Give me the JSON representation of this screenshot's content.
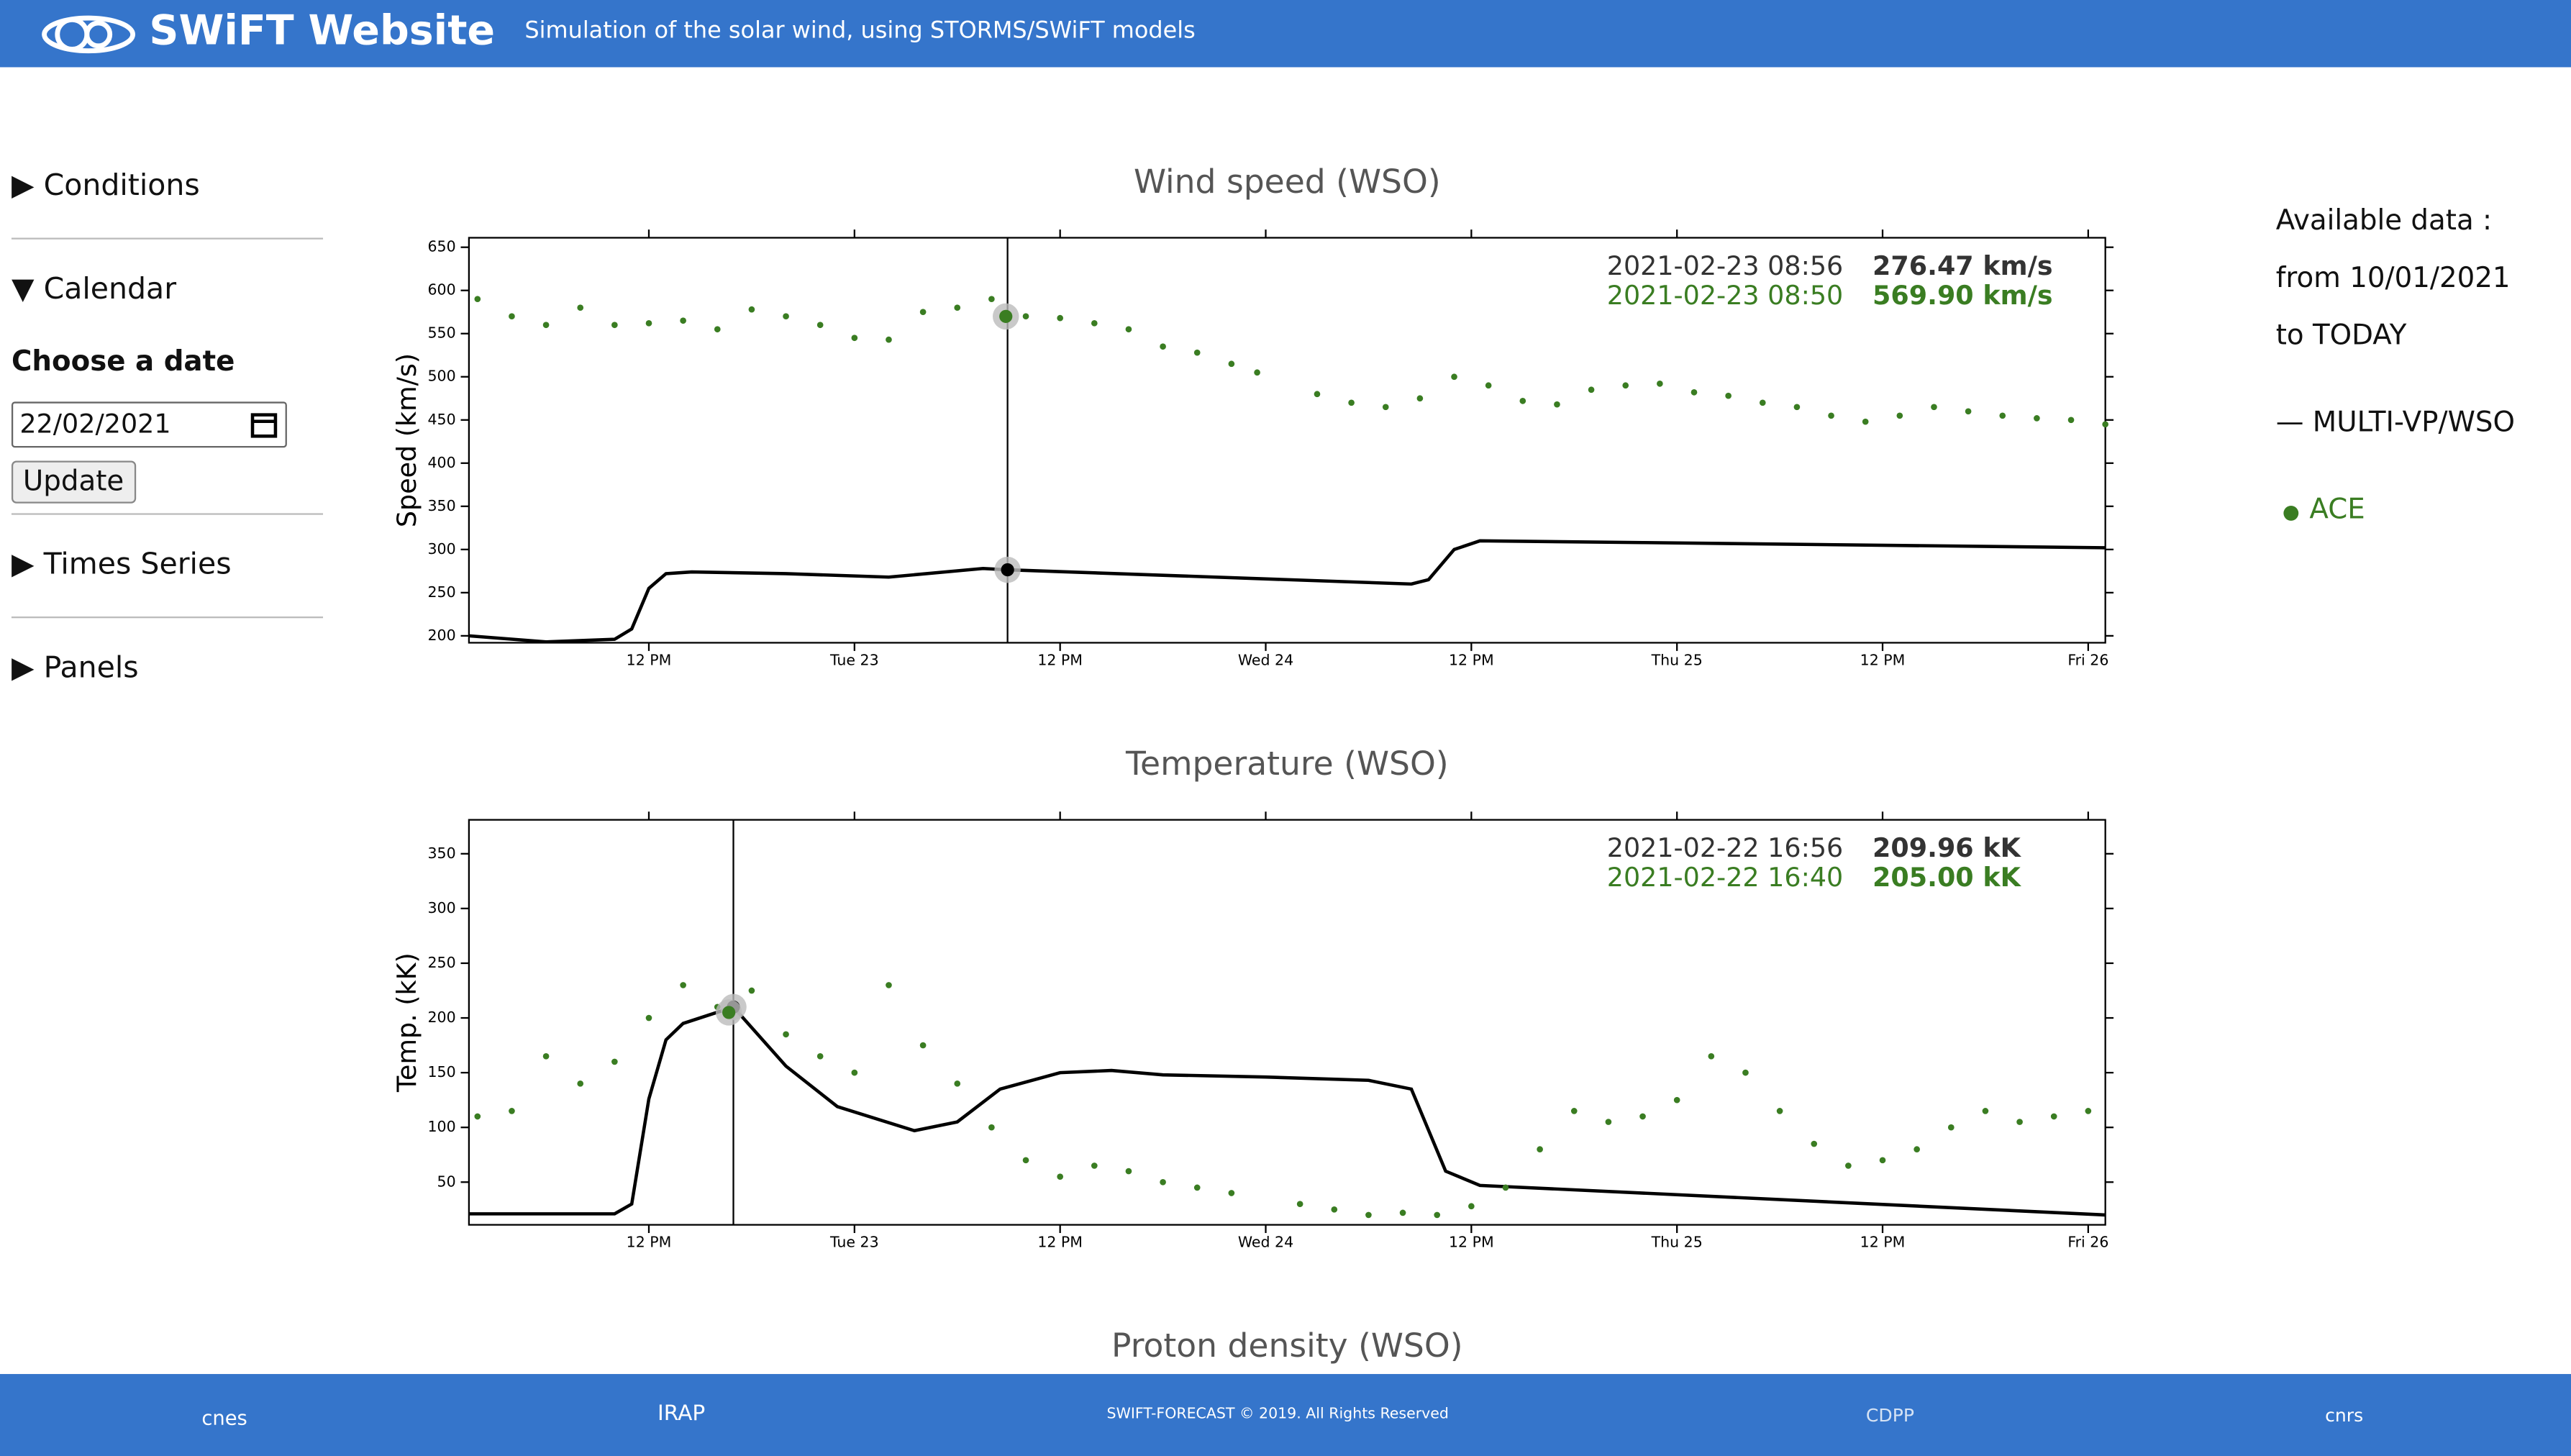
{
  "header": {
    "title": "SWiFT Website",
    "subtitle": "Simulation of the solar wind, using STORMS/SWiFT models"
  },
  "sidebar": {
    "sections": [
      "Conditions",
      "Calendar"
    ],
    "date_heading": "Choose a date",
    "date_value": "22/02/2021",
    "button": "Update",
    "more_sections": [
      "Times Series",
      "Panels"
    ]
  },
  "info": {
    "lines": [
      "Available data :",
      "from 10/01/2021",
      "to TODAY"
    ]
  },
  "next_title": "Proton density (WSO)",
  "footer": {
    "logos": [
      "cnes",
      "IRAP",
      "SWIFT-FORECAST © 2019. All Rights Reserved",
      "CDPP",
      "cnrs"
    ]
  },
  "chart_data": [
    {
      "type": "line",
      "title": "Wind speed (WSO)",
      "y_label": "Speed (km/s)",
      "xlim": [
        "2021-02-22 01:30",
        "2021-02-26 01:00"
      ],
      "xticks": [
        {
          "value": "2021-02-22 12:00",
          "label": "12 PM"
        },
        {
          "value": "2021-02-23 00:00",
          "label": "Tue 23"
        },
        {
          "value": "2021-02-23 12:00",
          "label": "12 PM"
        },
        {
          "value": "2021-02-24 00:00",
          "label": "Wed 24"
        },
        {
          "value": "2021-02-24 12:00",
          "label": "12 PM"
        },
        {
          "value": "2021-02-25 00:00",
          "label": "Thu 25"
        },
        {
          "value": "2021-02-25 12:00",
          "label": "12 PM"
        },
        {
          "value": "2021-02-26 00:00",
          "label": "Fri 26"
        }
      ],
      "ylim": [
        192,
        661
      ],
      "yticks": [
        200,
        250,
        300,
        350,
        400,
        450,
        500,
        550,
        600,
        650
      ],
      "series": [
        {
          "name": "MULTI-VP/WSO",
          "color": "#000000",
          "style": "line",
          "x": [
            "2021-02-22 01:30",
            "2021-02-22 06:00",
            "2021-02-22 10:00",
            "2021-02-22 11:00",
            "2021-02-22 12:00",
            "2021-02-22 13:00",
            "2021-02-22 14:30",
            "2021-02-22 20:00",
            "2021-02-23 02:00",
            "2021-02-23 07:30",
            "2021-02-23 08:56",
            "2021-02-24 08:30",
            "2021-02-24 09:30",
            "2021-02-24 11:00",
            "2021-02-24 12:30",
            "2021-02-24 22:00",
            "2021-02-26 01:00"
          ],
          "values": [
            200,
            193,
            196,
            208,
            255,
            272,
            274,
            272,
            268,
            278,
            276.47,
            260,
            265,
            300,
            310,
            308,
            302
          ]
        },
        {
          "name": "ACE",
          "color": "#3a7d22",
          "style": "scatter",
          "x": [
            "2021-02-22 02:00",
            "2021-02-22 04:00",
            "2021-02-22 06:00",
            "2021-02-22 08:00",
            "2021-02-22 10:00",
            "2021-02-22 12:00",
            "2021-02-22 14:00",
            "2021-02-22 16:00",
            "2021-02-22 18:00",
            "2021-02-22 20:00",
            "2021-02-22 22:00",
            "2021-02-23 00:00",
            "2021-02-23 02:00",
            "2021-02-23 04:00",
            "2021-02-23 06:00",
            "2021-02-23 08:00",
            "2021-02-23 08:50",
            "2021-02-23 10:00",
            "2021-02-23 12:00",
            "2021-02-23 14:00",
            "2021-02-23 16:00",
            "2021-02-23 18:00",
            "2021-02-23 20:00",
            "2021-02-23 22:00",
            "2021-02-23 23:30",
            "2021-02-24 03:00",
            "2021-02-24 05:00",
            "2021-02-24 07:00",
            "2021-02-24 09:00",
            "2021-02-24 11:00",
            "2021-02-24 13:00",
            "2021-02-24 15:00",
            "2021-02-24 17:00",
            "2021-02-24 19:00",
            "2021-02-24 21:00",
            "2021-02-24 23:00",
            "2021-02-25 01:00",
            "2021-02-25 03:00",
            "2021-02-25 05:00",
            "2021-02-25 07:00",
            "2021-02-25 09:00",
            "2021-02-25 11:00",
            "2021-02-25 13:00",
            "2021-02-25 15:00",
            "2021-02-25 17:00",
            "2021-02-25 19:00",
            "2021-02-25 21:00",
            "2021-02-25 23:00",
            "2021-02-26 01:00"
          ],
          "values": [
            590,
            570,
            560,
            580,
            560,
            562,
            565,
            555,
            578,
            570,
            560,
            545,
            543,
            575,
            580,
            590,
            569.9,
            570,
            568,
            562,
            555,
            535,
            528,
            515,
            505,
            480,
            470,
            465,
            475,
            500,
            490,
            472,
            468,
            485,
            490,
            492,
            482,
            478,
            470,
            465,
            455,
            448,
            455,
            465,
            460,
            455,
            452,
            450,
            445
          ]
        }
      ],
      "hover": {
        "model": {
          "x": "2021-02-23 08:56",
          "value": 276.47,
          "label": "276.47 km/s"
        },
        "obs": {
          "x": "2021-02-23 08:50",
          "value": 569.9,
          "label": "569.90 km/s"
        }
      }
    },
    {
      "type": "line",
      "title": "Temperature (WSO)",
      "y_label": "Temp. (kK)",
      "xlim": [
        "2021-02-22 01:30",
        "2021-02-26 01:00"
      ],
      "xticks": [
        {
          "value": "2021-02-22 12:00",
          "label": "12 PM"
        },
        {
          "value": "2021-02-23 00:00",
          "label": "Tue 23"
        },
        {
          "value": "2021-02-23 12:00",
          "label": "12 PM"
        },
        {
          "value": "2021-02-24 00:00",
          "label": "Wed 24"
        },
        {
          "value": "2021-02-24 12:00",
          "label": "12 PM"
        },
        {
          "value": "2021-02-25 00:00",
          "label": "Thu 25"
        },
        {
          "value": "2021-02-25 12:00",
          "label": "12 PM"
        },
        {
          "value": "2021-02-26 00:00",
          "label": "Fri 26"
        }
      ],
      "ylim": [
        11,
        381
      ],
      "yticks": [
        50,
        100,
        150,
        200,
        250,
        300,
        350
      ],
      "series": [
        {
          "name": "MULTI-VP/WSO",
          "color": "#000000",
          "style": "line",
          "x": [
            "2021-02-22 01:30",
            "2021-02-22 10:00",
            "2021-02-22 11:00",
            "2021-02-22 12:00",
            "2021-02-22 13:00",
            "2021-02-22 14:00",
            "2021-02-22 16:56",
            "2021-02-22 20:00",
            "2021-02-22 23:00",
            "2021-02-23 03:30",
            "2021-02-23 06:00",
            "2021-02-23 08:30",
            "2021-02-23 12:00",
            "2021-02-23 15:00",
            "2021-02-23 18:00",
            "2021-02-24 00:00",
            "2021-02-24 06:00",
            "2021-02-24 08:30",
            "2021-02-24 10:30",
            "2021-02-24 12:30",
            "2021-02-26 01:00"
          ],
          "values": [
            21,
            21,
            30,
            126,
            180,
            195,
            209.96,
            156,
            119,
            97,
            105,
            135,
            150,
            152,
            148,
            146,
            143,
            135,
            60,
            47,
            20
          ]
        },
        {
          "name": "ACE",
          "color": "#3a7d22",
          "style": "scatter",
          "x": [
            "2021-02-22 02:00",
            "2021-02-22 04:00",
            "2021-02-22 06:00",
            "2021-02-22 08:00",
            "2021-02-22 10:00",
            "2021-02-22 12:00",
            "2021-02-22 14:00",
            "2021-02-22 16:00",
            "2021-02-22 16:40",
            "2021-02-22 18:00",
            "2021-02-22 20:00",
            "2021-02-22 22:00",
            "2021-02-23 00:00",
            "2021-02-23 02:00",
            "2021-02-23 04:00",
            "2021-02-23 06:00",
            "2021-02-23 08:00",
            "2021-02-23 10:00",
            "2021-02-23 12:00",
            "2021-02-23 14:00",
            "2021-02-23 16:00",
            "2021-02-23 18:00",
            "2021-02-23 20:00",
            "2021-02-23 22:00",
            "2021-02-24 02:00",
            "2021-02-24 04:00",
            "2021-02-24 06:00",
            "2021-02-24 08:00",
            "2021-02-24 10:00",
            "2021-02-24 12:00",
            "2021-02-24 14:00",
            "2021-02-24 16:00",
            "2021-02-24 18:00",
            "2021-02-24 20:00",
            "2021-02-24 22:00",
            "2021-02-25 00:00",
            "2021-02-25 02:00",
            "2021-02-25 04:00",
            "2021-02-25 06:00",
            "2021-02-25 08:00",
            "2021-02-25 10:00",
            "2021-02-25 12:00",
            "2021-02-25 14:00",
            "2021-02-25 16:00",
            "2021-02-25 18:00",
            "2021-02-25 20:00",
            "2021-02-25 22:00",
            "2021-02-26 00:00"
          ],
          "values": [
            110,
            115,
            165,
            140,
            160,
            200,
            230,
            210,
            205,
            225,
            185,
            165,
            150,
            230,
            175,
            140,
            100,
            70,
            55,
            65,
            60,
            50,
            45,
            40,
            30,
            25,
            20,
            22,
            20,
            28,
            45,
            80,
            115,
            105,
            110,
            125,
            165,
            150,
            115,
            85,
            65,
            70,
            80,
            100,
            115,
            105,
            110,
            115
          ]
        }
      ],
      "hover": {
        "model": {
          "x": "2021-02-22 16:56",
          "value": 209.96,
          "label": "209.96 kK"
        },
        "obs": {
          "x": "2021-02-22 16:40",
          "value": 205,
          "label": "205.00 kK"
        }
      }
    }
  ]
}
